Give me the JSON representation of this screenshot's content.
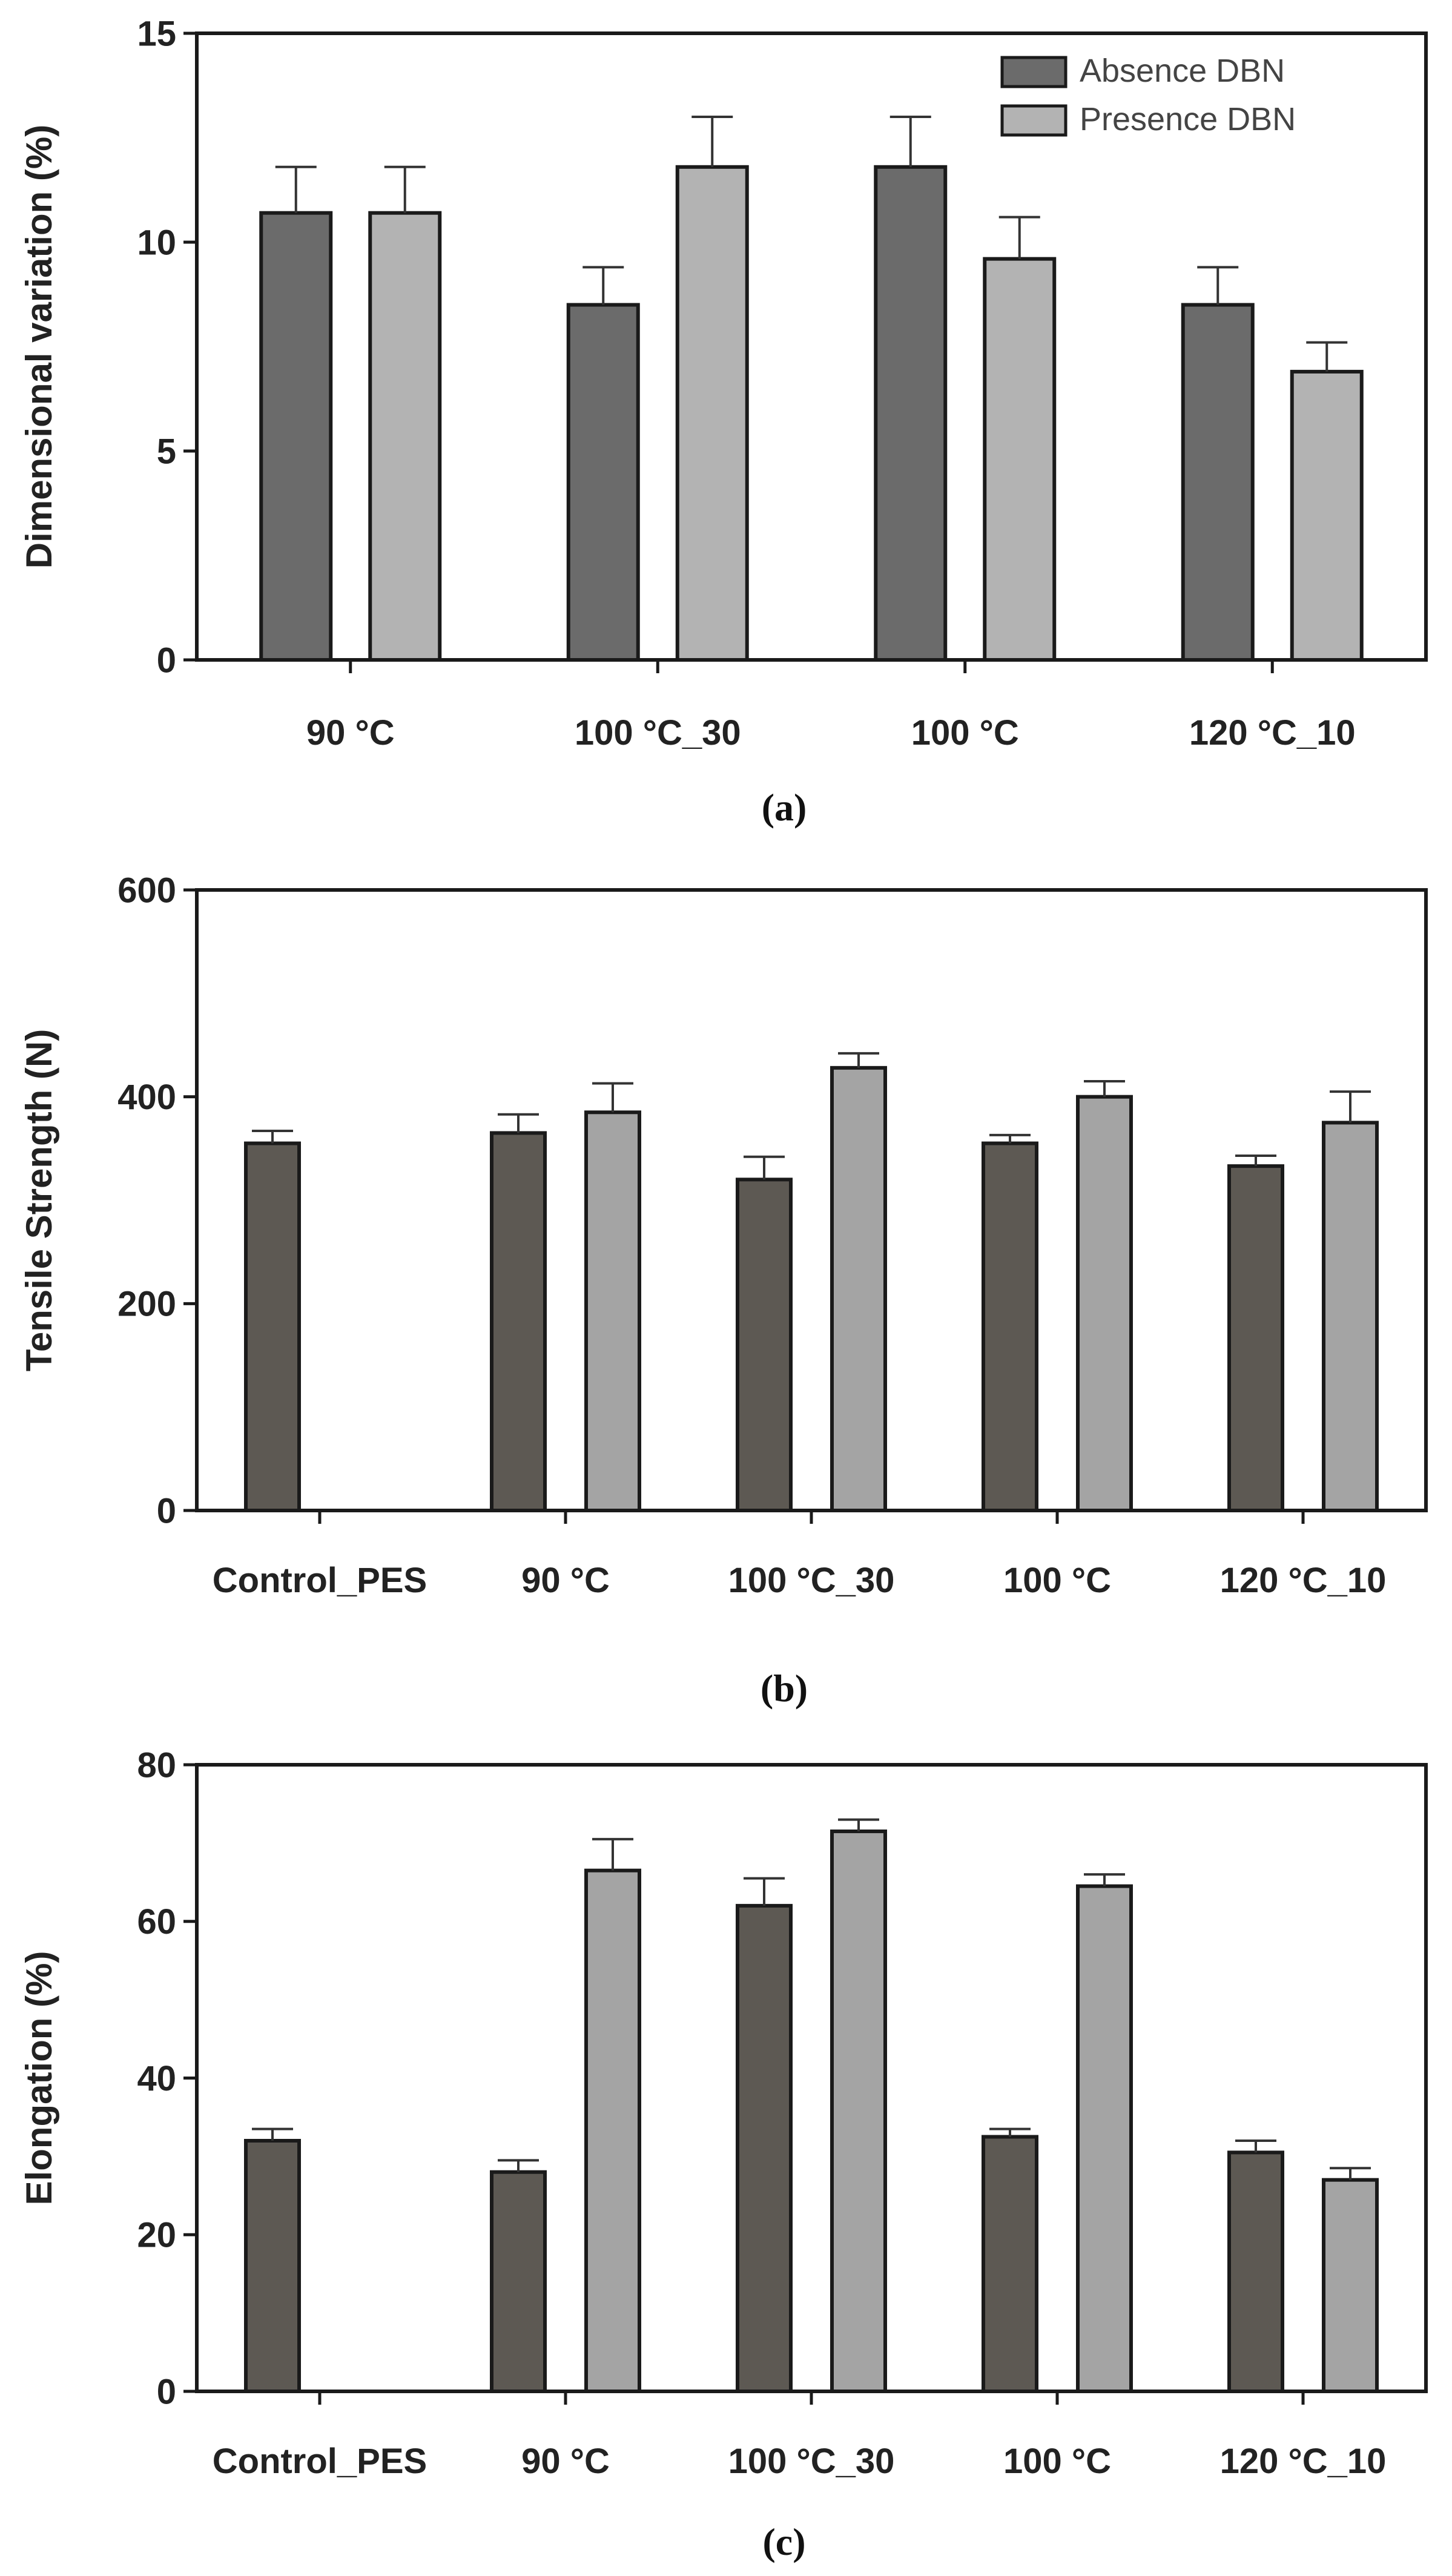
{
  "colors": {
    "absence_a": "#6b6b6b",
    "presence_a": "#b3b3b3",
    "absence_bc": "#5d5953",
    "presence_bc": "#a4a4a4",
    "axis": "#1a1a1a"
  },
  "legend": {
    "absence": "Absence DBN",
    "presence": "Presence DBN"
  },
  "chart_data": [
    {
      "id": "a",
      "type": "bar",
      "caption": "(a)",
      "title": "",
      "xlabel": "",
      "ylabel": "Dimensional variation (%)",
      "ylim": [
        0,
        15
      ],
      "yticks": [
        0,
        5,
        10,
        15
      ],
      "yticks_labels": [
        "0",
        "5",
        "10",
        "15"
      ],
      "legend_position": "top-right",
      "categories": [
        "90 °C",
        "100 °C_30",
        "100 °C",
        "120 °C_10"
      ],
      "series": [
        {
          "name": "Absence DBN",
          "values": [
            10.7,
            8.5,
            11.8,
            8.5
          ],
          "errors": [
            1.1,
            0.9,
            1.2,
            0.9
          ]
        },
        {
          "name": "Presence DBN",
          "values": [
            10.7,
            11.8,
            9.6,
            6.9
          ],
          "errors": [
            1.1,
            1.2,
            1.0,
            0.7
          ]
        }
      ]
    },
    {
      "id": "b",
      "type": "bar",
      "caption": "(b)",
      "title": "",
      "xlabel": "",
      "ylabel": "Tensile Strength (N)",
      "ylim": [
        0,
        600
      ],
      "yticks": [
        0,
        200,
        400,
        600
      ],
      "yticks_labels": [
        "0",
        "200",
        "400",
        "600"
      ],
      "categories": [
        "Control_PES",
        "90 °C",
        "100 °C_30",
        "100 °C",
        "120 °C_10"
      ],
      "series": [
        {
          "name": "Absence DBN",
          "values": [
            355,
            365,
            320,
            355,
            333
          ],
          "errors": [
            12,
            18,
            22,
            8,
            10
          ]
        },
        {
          "name": "Presence DBN",
          "values": [
            null,
            385,
            428,
            400,
            375
          ],
          "errors": [
            null,
            28,
            14,
            15,
            30
          ]
        }
      ]
    },
    {
      "id": "c",
      "type": "bar",
      "caption": "(c)",
      "title": "",
      "xlabel": "",
      "ylabel": "Elongation (%)",
      "ylim": [
        0,
        80
      ],
      "yticks": [
        0,
        20,
        40,
        60,
        80
      ],
      "yticks_labels": [
        "0",
        "20",
        "40",
        "60",
        "80"
      ],
      "categories": [
        "Control_PES",
        "90 °C",
        "100 °C_30",
        "100 °C",
        "120 °C_10"
      ],
      "series": [
        {
          "name": "Absence DBN",
          "values": [
            32,
            28,
            62,
            32.5,
            30.5
          ],
          "errors": [
            1.5,
            1.5,
            3.5,
            1,
            1.5
          ]
        },
        {
          "name": "Presence DBN",
          "values": [
            null,
            66.5,
            71.5,
            64.5,
            27
          ],
          "errors": [
            null,
            4,
            1.5,
            1.5,
            1.5
          ]
        }
      ]
    }
  ]
}
